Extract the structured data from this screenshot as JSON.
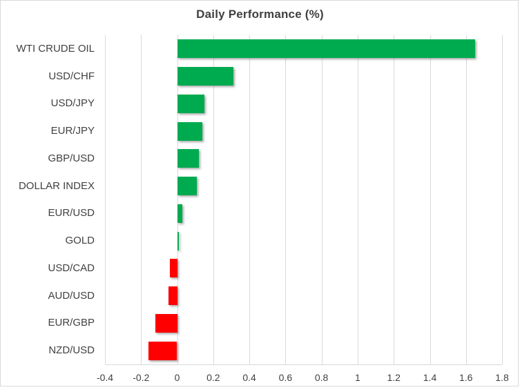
{
  "chart_data": {
    "type": "bar",
    "orientation": "horizontal",
    "title": "Daily Performance (%)",
    "categories": [
      "WTI CRUDE OIL",
      "USD/CHF",
      "USD/JPY",
      "EUR/JPY",
      "GBP/USD",
      "DOLLAR INDEX",
      "EUR/USD",
      "GOLD",
      "USD/CAD",
      "AUD/USD",
      "EUR/GBP",
      "NZD/USD"
    ],
    "values": [
      1.65,
      0.31,
      0.15,
      0.14,
      0.12,
      0.11,
      0.03,
      0.01,
      -0.04,
      -0.05,
      -0.12,
      -0.16
    ],
    "xlabel": "",
    "ylabel": "",
    "xlim": [
      -0.4,
      1.8
    ],
    "x_ticks": [
      -0.4,
      -0.2,
      0,
      0.2,
      0.4,
      0.6,
      0.8,
      1,
      1.2,
      1.4,
      1.6,
      1.8
    ],
    "x_tick_labels": [
      "-0.4",
      "-0.2",
      "0",
      "0.2",
      "0.4",
      "0.6",
      "0.8",
      "1",
      "1.2",
      "1.4",
      "1.6",
      "1.8"
    ],
    "grid": "vertical-only",
    "legend": "none",
    "colors": {
      "positive_bar": "#00AB50",
      "negative_bar": "#FF0000",
      "gridline": "#D9D9D9",
      "axis_line": "#D9D9D9",
      "tick_text": "#404040",
      "category_text": "#404040",
      "title_text": "#3F3F3F",
      "border": "#D9D9D9",
      "background": "#FFFFFF"
    }
  }
}
